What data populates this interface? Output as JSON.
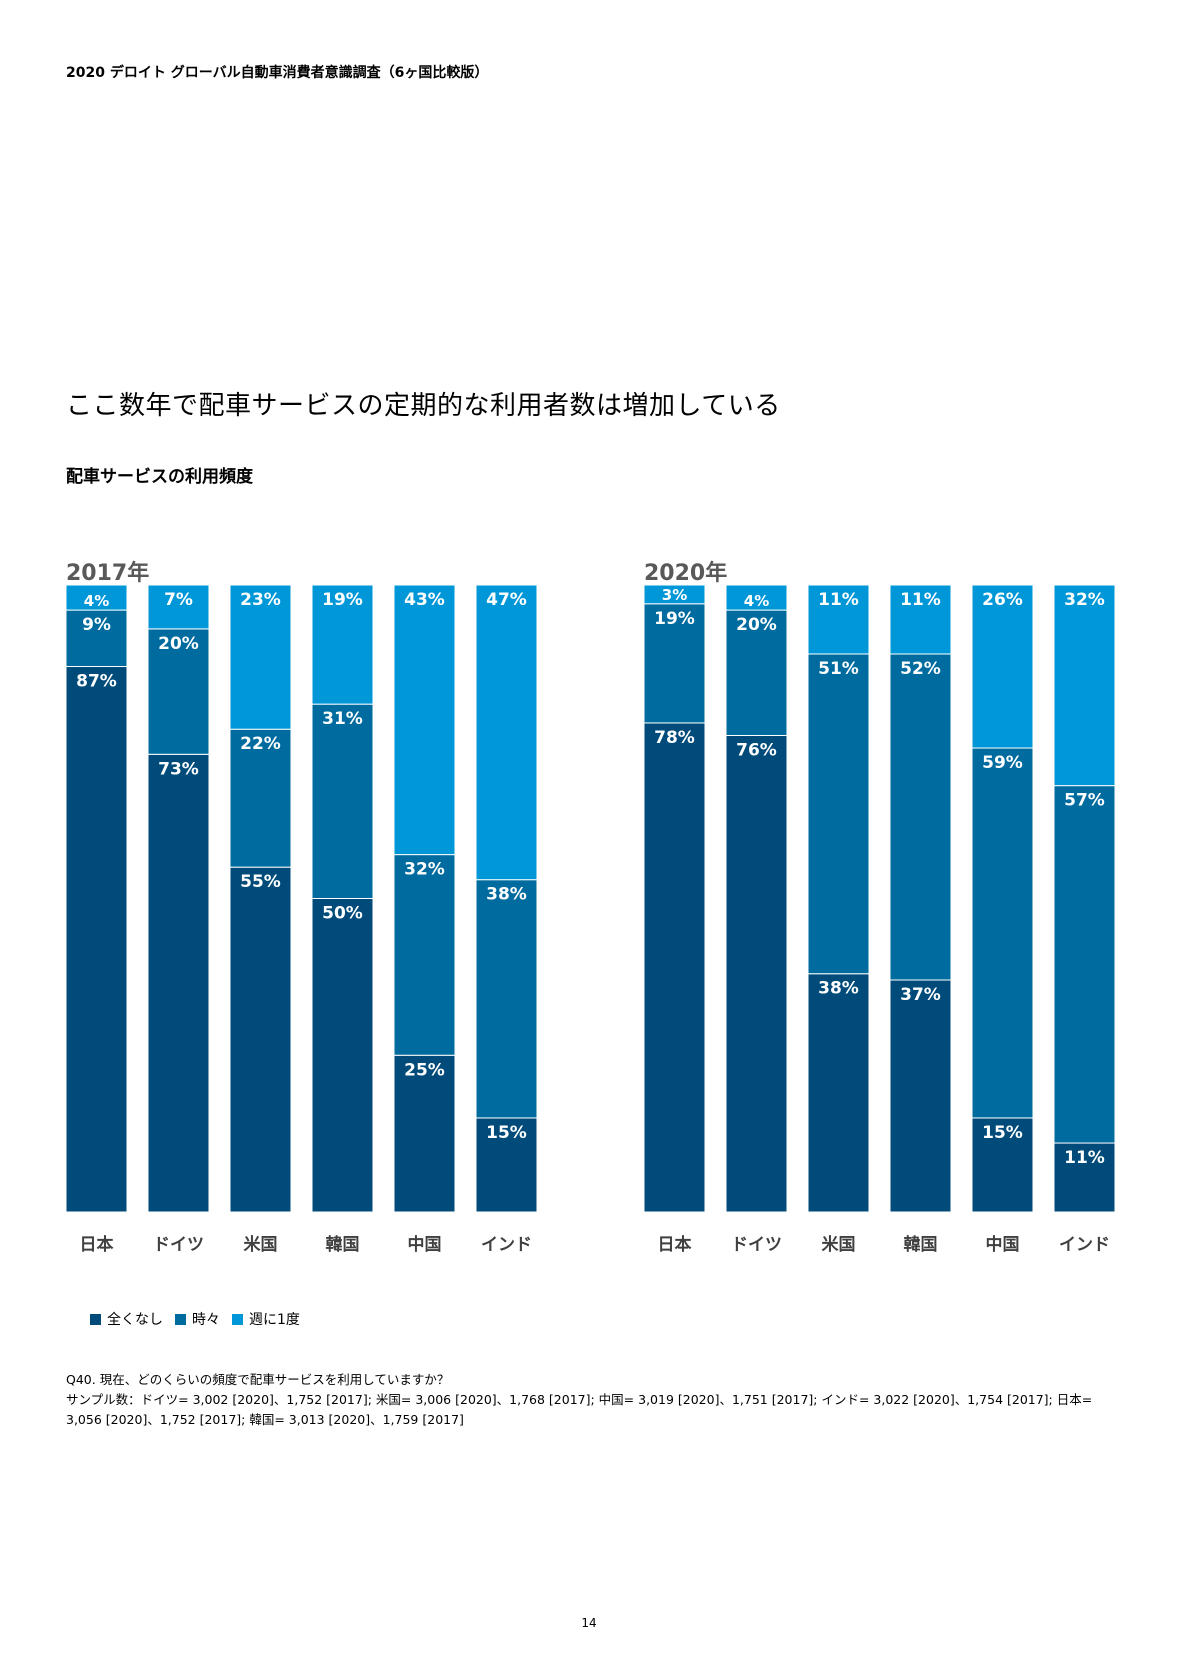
{
  "header": {
    "title": "2020 デロイト グローバル自動車消費者意識調査（6ヶ国比較版）"
  },
  "headline": "ここ数年で配車サービスの定期的な利用者数は増加している",
  "subheading": "配車サービスの利用頻度",
  "colors": {
    "never": "#004b7a",
    "sometimes": "#006b9f",
    "weekly": "#0097d8"
  },
  "chart_data": [
    {
      "type": "bar",
      "stacked": true,
      "title": "2017年",
      "categories": [
        "日本",
        "ドイツ",
        "米国",
        "韓国",
        "中国",
        "インド"
      ],
      "series": [
        {
          "name": "全くなし",
          "values": [
            87,
            73,
            55,
            50,
            25,
            15
          ],
          "labels": [
            "87%",
            "73%",
            "55%",
            "50%",
            "25%",
            "15%"
          ]
        },
        {
          "name": "時々",
          "values": [
            9,
            20,
            22,
            31,
            32,
            38
          ],
          "labels": [
            "9%",
            "20%",
            "22%",
            "31%",
            "32%",
            "38%"
          ]
        },
        {
          "name": "週に1度",
          "values": [
            4,
            7,
            23,
            19,
            43,
            47
          ],
          "labels": [
            "4%",
            "7%",
            "23%",
            "19%",
            "43%",
            "47%"
          ]
        }
      ],
      "ylim": [
        0,
        100
      ]
    },
    {
      "type": "bar",
      "stacked": true,
      "title": "2020年",
      "categories": [
        "日本",
        "ドイツ",
        "米国",
        "韓国",
        "中国",
        "インド"
      ],
      "series": [
        {
          "name": "全くなし",
          "values": [
            78,
            76,
            38,
            37,
            15,
            11
          ],
          "labels": [
            "78%",
            "76%",
            "38%",
            "37%",
            "15%",
            "11%"
          ]
        },
        {
          "name": "時々",
          "values": [
            19,
            20,
            51,
            52,
            59,
            57
          ],
          "labels": [
            "19%",
            "20%",
            "51%",
            "52%",
            "59%",
            "57%"
          ]
        },
        {
          "name": "週に1度",
          "values": [
            3,
            4,
            11,
            11,
            26,
            32
          ],
          "labels": [
            "3%",
            "4%",
            "11%",
            "11%",
            "26%",
            "32%"
          ]
        }
      ],
      "ylim": [
        0,
        100
      ]
    }
  ],
  "legend": [
    {
      "label": "全くなし",
      "color": "#004b7a"
    },
    {
      "label": "時々",
      "color": "#006b9f"
    },
    {
      "label": "週に1度",
      "color": "#0097d8"
    }
  ],
  "footnote": {
    "question": "Q40. 現在、どのくらいの頻度で配車サービスを利用していますか？",
    "sample": "サンプル数：ドイツ= 3,002 [2020]、1,752 [2017]; 米国= 3,006 [2020]、1,768 [2017]; 中国= 3,019 [2020]、1,751 [2017]; インド= 3,022 [2020]、1,754 [2017]; 日本= 3,056 [2020]、1,752 [2017]; 韓国= 3,013 [2020]、1,759 [2017]"
  },
  "page_number": "14"
}
